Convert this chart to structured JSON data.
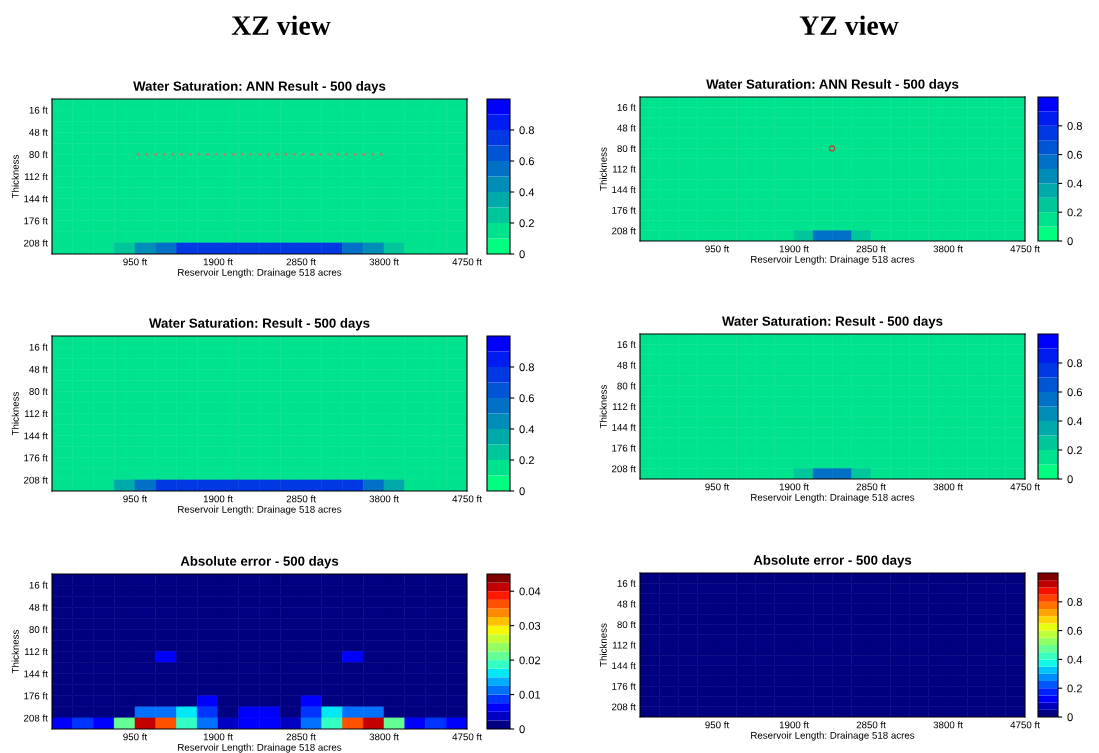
{
  "chart_data": [
    {
      "type": "heatmap",
      "title": "Water Saturation: ANN Result - 500 days",
      "xlabel": "Reservoir Length: Drainage 518 acres",
      "ylabel": "Thickness",
      "annotations": [
        "XZ view"
      ],
      "xlim": [
        0,
        4750
      ],
      "ylim": [
        224,
        0
      ],
      "xticks": [
        {
          "value": 950,
          "label": "950 ft"
        },
        {
          "value": 1900,
          "label": "1900 ft"
        },
        {
          "value": 2850,
          "label": "2850 ft"
        },
        {
          "value": 3800,
          "label": "3800 ft"
        },
        {
          "value": 4750,
          "label": "4750 ft"
        }
      ],
      "yticks": [
        {
          "value": 16,
          "label": "16 ft"
        },
        {
          "value": 48,
          "label": "48 ft"
        },
        {
          "value": 80,
          "label": "80 ft"
        },
        {
          "value": 112,
          "label": "112 ft"
        },
        {
          "value": 144,
          "label": "144 ft"
        },
        {
          "value": 176,
          "label": "176 ft"
        },
        {
          "value": 208,
          "label": "208 ft"
        }
      ],
      "clim": [
        0,
        1
      ],
      "cticks": [
        0,
        0.2,
        0.4,
        0.6,
        0.8
      ],
      "series": [
        {
          "type": "scatter",
          "marker": "circle",
          "color": "#a08878",
          "x": [
            985,
            1084,
            1184,
            1283,
            1383,
            1482,
            1581,
            1681,
            1780,
            1880,
            1979,
            2078,
            2178,
            2277,
            2377,
            2476,
            2575,
            2675,
            2774,
            2874,
            2973,
            3072,
            3172,
            3271,
            3371,
            3470,
            3569,
            3669,
            3768
          ],
          "values": [
            80,
            80,
            80,
            80,
            80,
            80,
            80,
            80,
            80,
            80,
            80,
            80,
            80,
            80,
            80,
            80,
            80,
            80,
            80,
            80,
            80,
            80,
            80,
            80,
            80,
            80,
            80,
            80,
            80
          ]
        }
      ],
      "cells": [
        [
          0.15,
          0.15,
          0.15,
          0.15,
          0.15,
          0.15,
          0.15,
          0.15,
          0.15,
          0.15,
          0.15,
          0.15,
          0.15,
          0.15,
          0.15,
          0.15,
          0.15,
          0.15,
          0.15,
          0.15
        ],
        [
          0.15,
          0.15,
          0.15,
          0.15,
          0.15,
          0.15,
          0.15,
          0.15,
          0.15,
          0.15,
          0.15,
          0.15,
          0.15,
          0.15,
          0.15,
          0.15,
          0.15,
          0.15,
          0.15,
          0.15
        ],
        [
          0.15,
          0.15,
          0.15,
          0.15,
          0.15,
          0.15,
          0.15,
          0.15,
          0.15,
          0.15,
          0.15,
          0.15,
          0.15,
          0.15,
          0.15,
          0.15,
          0.15,
          0.15,
          0.15,
          0.15
        ],
        [
          0.15,
          0.15,
          0.15,
          0.15,
          0.15,
          0.15,
          0.15,
          0.15,
          0.15,
          0.15,
          0.15,
          0.15,
          0.15,
          0.15,
          0.15,
          0.15,
          0.15,
          0.15,
          0.15,
          0.15
        ],
        [
          0.15,
          0.15,
          0.15,
          0.15,
          0.15,
          0.15,
          0.15,
          0.15,
          0.15,
          0.15,
          0.15,
          0.15,
          0.15,
          0.15,
          0.15,
          0.15,
          0.15,
          0.15,
          0.15,
          0.15
        ],
        [
          0.15,
          0.15,
          0.15,
          0.15,
          0.15,
          0.15,
          0.15,
          0.15,
          0.15,
          0.15,
          0.15,
          0.15,
          0.15,
          0.15,
          0.15,
          0.15,
          0.15,
          0.15,
          0.15,
          0.15
        ],
        [
          0.15,
          0.15,
          0.15,
          0.15,
          0.15,
          0.15,
          0.15,
          0.15,
          0.15,
          0.15,
          0.15,
          0.15,
          0.15,
          0.15,
          0.15,
          0.15,
          0.15,
          0.15,
          0.15,
          0.15
        ],
        [
          0.15,
          0.15,
          0.15,
          0.15,
          0.15,
          0.15,
          0.15,
          0.15,
          0.15,
          0.15,
          0.15,
          0.15,
          0.15,
          0.15,
          0.15,
          0.15,
          0.15,
          0.15,
          0.15,
          0.15
        ],
        [
          0.15,
          0.15,
          0.15,
          0.15,
          0.15,
          0.15,
          0.15,
          0.15,
          0.15,
          0.15,
          0.15,
          0.15,
          0.15,
          0.15,
          0.15,
          0.15,
          0.15,
          0.15,
          0.15,
          0.15
        ],
        [
          0.15,
          0.15,
          0.15,
          0.15,
          0.15,
          0.15,
          0.15,
          0.15,
          0.15,
          0.15,
          0.15,
          0.15,
          0.15,
          0.15,
          0.15,
          0.15,
          0.15,
          0.15,
          0.15,
          0.15
        ],
        [
          0.15,
          0.15,
          0.15,
          0.15,
          0.15,
          0.15,
          0.15,
          0.15,
          0.15,
          0.15,
          0.15,
          0.15,
          0.15,
          0.15,
          0.15,
          0.15,
          0.15,
          0.15,
          0.15,
          0.15
        ],
        [
          0.15,
          0.15,
          0.15,
          0.15,
          0.15,
          0.15,
          0.15,
          0.15,
          0.15,
          0.15,
          0.15,
          0.15,
          0.15,
          0.15,
          0.15,
          0.15,
          0.15,
          0.15,
          0.15,
          0.15
        ],
        [
          0.15,
          0.15,
          0.15,
          0.15,
          0.15,
          0.15,
          0.15,
          0.15,
          0.15,
          0.15,
          0.15,
          0.15,
          0.15,
          0.15,
          0.15,
          0.15,
          0.15,
          0.15,
          0.15,
          0.15
        ],
        [
          0.15,
          0.15,
          0.15,
          0.25,
          0.4,
          0.55,
          0.75,
          0.75,
          0.75,
          0.75,
          0.75,
          0.75,
          0.75,
          0.75,
          0.55,
          0.4,
          0.25,
          0.15,
          0.15,
          0.15
        ]
      ]
    },
    {
      "type": "heatmap",
      "title": "Water Saturation: ANN Result - 500 days",
      "xlabel": "Reservoir Length: Drainage 518 acres",
      "ylabel": "Thickness",
      "annotations": [
        "YZ view"
      ],
      "xlim": [
        0,
        4750
      ],
      "ylim": [
        224,
        0
      ],
      "xticks": [
        {
          "value": 950,
          "label": "950 ft"
        },
        {
          "value": 1900,
          "label": "1900 ft"
        },
        {
          "value": 2850,
          "label": "2850 ft"
        },
        {
          "value": 3800,
          "label": "3800 ft"
        },
        {
          "value": 4750,
          "label": "4750 ft"
        }
      ],
      "yticks": [
        {
          "value": 16,
          "label": "16 ft"
        },
        {
          "value": 48,
          "label": "48 ft"
        },
        {
          "value": 80,
          "label": "80 ft"
        },
        {
          "value": 112,
          "label": "112 ft"
        },
        {
          "value": 144,
          "label": "144 ft"
        },
        {
          "value": 176,
          "label": "176 ft"
        },
        {
          "value": 208,
          "label": "208 ft"
        }
      ],
      "clim": [
        0,
        1
      ],
      "cticks": [
        0,
        0.2,
        0.4,
        0.6,
        0.8
      ],
      "series": [
        {
          "type": "scatter",
          "marker": "circle",
          "color": "#c0392b",
          "x": [
            2371
          ],
          "values": [
            80
          ]
        }
      ],
      "cells": [
        [
          0.15,
          0.15,
          0.15,
          0.15,
          0.15,
          0.15,
          0.15,
          0.15,
          0.15,
          0.15,
          0.15,
          0.15,
          0.15,
          0.15,
          0.15,
          0.15,
          0.15,
          0.15,
          0.15,
          0.15
        ],
        [
          0.15,
          0.15,
          0.15,
          0.15,
          0.15,
          0.15,
          0.15,
          0.15,
          0.15,
          0.15,
          0.15,
          0.15,
          0.15,
          0.15,
          0.15,
          0.15,
          0.15,
          0.15,
          0.15,
          0.15
        ],
        [
          0.15,
          0.15,
          0.15,
          0.15,
          0.15,
          0.15,
          0.15,
          0.15,
          0.15,
          0.15,
          0.15,
          0.15,
          0.15,
          0.15,
          0.15,
          0.15,
          0.15,
          0.15,
          0.15,
          0.15
        ],
        [
          0.15,
          0.15,
          0.15,
          0.15,
          0.15,
          0.15,
          0.15,
          0.15,
          0.15,
          0.15,
          0.15,
          0.15,
          0.15,
          0.15,
          0.15,
          0.15,
          0.15,
          0.15,
          0.15,
          0.15
        ],
        [
          0.15,
          0.15,
          0.15,
          0.15,
          0.15,
          0.15,
          0.15,
          0.15,
          0.15,
          0.15,
          0.15,
          0.15,
          0.15,
          0.15,
          0.15,
          0.15,
          0.15,
          0.15,
          0.15,
          0.15
        ],
        [
          0.15,
          0.15,
          0.15,
          0.15,
          0.15,
          0.15,
          0.15,
          0.15,
          0.15,
          0.15,
          0.15,
          0.15,
          0.15,
          0.15,
          0.15,
          0.15,
          0.15,
          0.15,
          0.15,
          0.15
        ],
        [
          0.15,
          0.15,
          0.15,
          0.15,
          0.15,
          0.15,
          0.15,
          0.15,
          0.15,
          0.15,
          0.15,
          0.15,
          0.15,
          0.15,
          0.15,
          0.15,
          0.15,
          0.15,
          0.15,
          0.15
        ],
        [
          0.15,
          0.15,
          0.15,
          0.15,
          0.15,
          0.15,
          0.15,
          0.15,
          0.15,
          0.15,
          0.15,
          0.15,
          0.15,
          0.15,
          0.15,
          0.15,
          0.15,
          0.15,
          0.15,
          0.15
        ],
        [
          0.15,
          0.15,
          0.15,
          0.15,
          0.15,
          0.15,
          0.15,
          0.15,
          0.15,
          0.15,
          0.15,
          0.15,
          0.15,
          0.15,
          0.15,
          0.15,
          0.15,
          0.15,
          0.15,
          0.15
        ],
        [
          0.15,
          0.15,
          0.15,
          0.15,
          0.15,
          0.15,
          0.15,
          0.15,
          0.15,
          0.15,
          0.15,
          0.15,
          0.15,
          0.15,
          0.15,
          0.15,
          0.15,
          0.15,
          0.15,
          0.15
        ],
        [
          0.15,
          0.15,
          0.15,
          0.15,
          0.15,
          0.15,
          0.15,
          0.15,
          0.15,
          0.15,
          0.15,
          0.15,
          0.15,
          0.15,
          0.15,
          0.15,
          0.15,
          0.15,
          0.15,
          0.15
        ],
        [
          0.15,
          0.15,
          0.15,
          0.15,
          0.15,
          0.15,
          0.15,
          0.15,
          0.15,
          0.15,
          0.15,
          0.15,
          0.15,
          0.15,
          0.15,
          0.15,
          0.15,
          0.15,
          0.15,
          0.15
        ],
        [
          0.15,
          0.15,
          0.15,
          0.15,
          0.15,
          0.15,
          0.15,
          0.15,
          0.15,
          0.15,
          0.15,
          0.15,
          0.15,
          0.15,
          0.15,
          0.15,
          0.15,
          0.15,
          0.15,
          0.15
        ],
        [
          0.15,
          0.15,
          0.15,
          0.15,
          0.15,
          0.15,
          0.15,
          0.15,
          0.25,
          0.5,
          0.5,
          0.25,
          0.15,
          0.15,
          0.15,
          0.15,
          0.15,
          0.15,
          0.15,
          0.15
        ]
      ]
    },
    {
      "type": "heatmap",
      "title": "Water Saturation: Result - 500 days",
      "xlabel": "Reservoir Length: Drainage 518 acres",
      "ylabel": "Thickness",
      "xlim": [
        0,
        4750
      ],
      "ylim": [
        224,
        0
      ],
      "xticks": [
        {
          "value": 950,
          "label": "950 ft"
        },
        {
          "value": 1900,
          "label": "1900 ft"
        },
        {
          "value": 2850,
          "label": "2850 ft"
        },
        {
          "value": 3800,
          "label": "3800 ft"
        },
        {
          "value": 4750,
          "label": "4750 ft"
        }
      ],
      "yticks": [
        {
          "value": 16,
          "label": "16 ft"
        },
        {
          "value": 48,
          "label": "48 ft"
        },
        {
          "value": 80,
          "label": "80 ft"
        },
        {
          "value": 112,
          "label": "112 ft"
        },
        {
          "value": 144,
          "label": "144 ft"
        },
        {
          "value": 176,
          "label": "176 ft"
        },
        {
          "value": 208,
          "label": "208 ft"
        }
      ],
      "clim": [
        0,
        1
      ],
      "cticks": [
        0,
        0.2,
        0.4,
        0.6,
        0.8
      ],
      "cells": [
        [
          0.15,
          0.15,
          0.15,
          0.15,
          0.15,
          0.15,
          0.15,
          0.15,
          0.15,
          0.15,
          0.15,
          0.15,
          0.15,
          0.15,
          0.15,
          0.15,
          0.15,
          0.15,
          0.15,
          0.15
        ],
        [
          0.15,
          0.15,
          0.15,
          0.15,
          0.15,
          0.15,
          0.15,
          0.15,
          0.15,
          0.15,
          0.15,
          0.15,
          0.15,
          0.15,
          0.15,
          0.15,
          0.15,
          0.15,
          0.15,
          0.15
        ],
        [
          0.15,
          0.15,
          0.15,
          0.15,
          0.15,
          0.15,
          0.15,
          0.15,
          0.15,
          0.15,
          0.15,
          0.15,
          0.15,
          0.15,
          0.15,
          0.15,
          0.15,
          0.15,
          0.15,
          0.15
        ],
        [
          0.15,
          0.15,
          0.15,
          0.15,
          0.15,
          0.15,
          0.15,
          0.15,
          0.15,
          0.15,
          0.15,
          0.15,
          0.15,
          0.15,
          0.15,
          0.15,
          0.15,
          0.15,
          0.15,
          0.15
        ],
        [
          0.15,
          0.15,
          0.15,
          0.15,
          0.15,
          0.15,
          0.15,
          0.15,
          0.15,
          0.15,
          0.15,
          0.15,
          0.15,
          0.15,
          0.15,
          0.15,
          0.15,
          0.15,
          0.15,
          0.15
        ],
        [
          0.15,
          0.15,
          0.15,
          0.15,
          0.15,
          0.15,
          0.15,
          0.15,
          0.15,
          0.15,
          0.15,
          0.15,
          0.15,
          0.15,
          0.15,
          0.15,
          0.15,
          0.15,
          0.15,
          0.15
        ],
        [
          0.15,
          0.15,
          0.15,
          0.15,
          0.15,
          0.15,
          0.15,
          0.15,
          0.15,
          0.15,
          0.15,
          0.15,
          0.15,
          0.15,
          0.15,
          0.15,
          0.15,
          0.15,
          0.15,
          0.15
        ],
        [
          0.15,
          0.15,
          0.15,
          0.15,
          0.15,
          0.15,
          0.15,
          0.15,
          0.15,
          0.15,
          0.15,
          0.15,
          0.15,
          0.15,
          0.15,
          0.15,
          0.15,
          0.15,
          0.15,
          0.15
        ],
        [
          0.15,
          0.15,
          0.15,
          0.15,
          0.15,
          0.15,
          0.15,
          0.15,
          0.15,
          0.15,
          0.15,
          0.15,
          0.15,
          0.15,
          0.15,
          0.15,
          0.15,
          0.15,
          0.15,
          0.15
        ],
        [
          0.15,
          0.15,
          0.15,
          0.15,
          0.15,
          0.15,
          0.15,
          0.15,
          0.15,
          0.15,
          0.15,
          0.15,
          0.15,
          0.15,
          0.15,
          0.15,
          0.15,
          0.15,
          0.15,
          0.15
        ],
        [
          0.15,
          0.15,
          0.15,
          0.15,
          0.15,
          0.15,
          0.15,
          0.15,
          0.15,
          0.15,
          0.15,
          0.15,
          0.15,
          0.15,
          0.15,
          0.15,
          0.15,
          0.15,
          0.15,
          0.15
        ],
        [
          0.15,
          0.15,
          0.15,
          0.15,
          0.15,
          0.15,
          0.15,
          0.15,
          0.15,
          0.15,
          0.15,
          0.15,
          0.15,
          0.15,
          0.15,
          0.15,
          0.15,
          0.15,
          0.15,
          0.15
        ],
        [
          0.15,
          0.15,
          0.15,
          0.15,
          0.15,
          0.15,
          0.15,
          0.15,
          0.15,
          0.15,
          0.15,
          0.15,
          0.15,
          0.15,
          0.15,
          0.15,
          0.15,
          0.15,
          0.15,
          0.15
        ],
        [
          0.15,
          0.15,
          0.15,
          0.3,
          0.5,
          0.7,
          0.7,
          0.7,
          0.7,
          0.7,
          0.7,
          0.7,
          0.7,
          0.7,
          0.7,
          0.5,
          0.3,
          0.15,
          0.15,
          0.15
        ]
      ]
    },
    {
      "type": "heatmap",
      "title": "Water Saturation: Result - 500 days",
      "xlabel": "Reservoir Length: Drainage 518 acres",
      "ylabel": "Thickness",
      "xlim": [
        0,
        4750
      ],
      "ylim": [
        224,
        0
      ],
      "xticks": [
        {
          "value": 950,
          "label": "950 ft"
        },
        {
          "value": 1900,
          "label": "1900 ft"
        },
        {
          "value": 2850,
          "label": "2850 ft"
        },
        {
          "value": 3800,
          "label": "3800 ft"
        },
        {
          "value": 4750,
          "label": "4750 ft"
        }
      ],
      "yticks": [
        {
          "value": 16,
          "label": "16 ft"
        },
        {
          "value": 48,
          "label": "48 ft"
        },
        {
          "value": 80,
          "label": "80 ft"
        },
        {
          "value": 112,
          "label": "112 ft"
        },
        {
          "value": 144,
          "label": "144 ft"
        },
        {
          "value": 176,
          "label": "176 ft"
        },
        {
          "value": 208,
          "label": "208 ft"
        }
      ],
      "clim": [
        0,
        1
      ],
      "cticks": [
        0,
        0.2,
        0.4,
        0.6,
        0.8
      ],
      "cells": [
        [
          0.15,
          0.15,
          0.15,
          0.15,
          0.15,
          0.15,
          0.15,
          0.15,
          0.15,
          0.15,
          0.15,
          0.15,
          0.15,
          0.15,
          0.15,
          0.15,
          0.15,
          0.15,
          0.15,
          0.15
        ],
        [
          0.15,
          0.15,
          0.15,
          0.15,
          0.15,
          0.15,
          0.15,
          0.15,
          0.15,
          0.15,
          0.15,
          0.15,
          0.15,
          0.15,
          0.15,
          0.15,
          0.15,
          0.15,
          0.15,
          0.15
        ],
        [
          0.15,
          0.15,
          0.15,
          0.15,
          0.15,
          0.15,
          0.15,
          0.15,
          0.15,
          0.15,
          0.15,
          0.15,
          0.15,
          0.15,
          0.15,
          0.15,
          0.15,
          0.15,
          0.15,
          0.15
        ],
        [
          0.15,
          0.15,
          0.15,
          0.15,
          0.15,
          0.15,
          0.15,
          0.15,
          0.15,
          0.15,
          0.15,
          0.15,
          0.15,
          0.15,
          0.15,
          0.15,
          0.15,
          0.15,
          0.15,
          0.15
        ],
        [
          0.15,
          0.15,
          0.15,
          0.15,
          0.15,
          0.15,
          0.15,
          0.15,
          0.15,
          0.15,
          0.15,
          0.15,
          0.15,
          0.15,
          0.15,
          0.15,
          0.15,
          0.15,
          0.15,
          0.15
        ],
        [
          0.15,
          0.15,
          0.15,
          0.15,
          0.15,
          0.15,
          0.15,
          0.15,
          0.15,
          0.15,
          0.15,
          0.15,
          0.15,
          0.15,
          0.15,
          0.15,
          0.15,
          0.15,
          0.15,
          0.15
        ],
        [
          0.15,
          0.15,
          0.15,
          0.15,
          0.15,
          0.15,
          0.15,
          0.15,
          0.15,
          0.15,
          0.15,
          0.15,
          0.15,
          0.15,
          0.15,
          0.15,
          0.15,
          0.15,
          0.15,
          0.15
        ],
        [
          0.15,
          0.15,
          0.15,
          0.15,
          0.15,
          0.15,
          0.15,
          0.15,
          0.15,
          0.15,
          0.15,
          0.15,
          0.15,
          0.15,
          0.15,
          0.15,
          0.15,
          0.15,
          0.15,
          0.15
        ],
        [
          0.15,
          0.15,
          0.15,
          0.15,
          0.15,
          0.15,
          0.15,
          0.15,
          0.15,
          0.15,
          0.15,
          0.15,
          0.15,
          0.15,
          0.15,
          0.15,
          0.15,
          0.15,
          0.15,
          0.15
        ],
        [
          0.15,
          0.15,
          0.15,
          0.15,
          0.15,
          0.15,
          0.15,
          0.15,
          0.15,
          0.15,
          0.15,
          0.15,
          0.15,
          0.15,
          0.15,
          0.15,
          0.15,
          0.15,
          0.15,
          0.15
        ],
        [
          0.15,
          0.15,
          0.15,
          0.15,
          0.15,
          0.15,
          0.15,
          0.15,
          0.15,
          0.15,
          0.15,
          0.15,
          0.15,
          0.15,
          0.15,
          0.15,
          0.15,
          0.15,
          0.15,
          0.15
        ],
        [
          0.15,
          0.15,
          0.15,
          0.15,
          0.15,
          0.15,
          0.15,
          0.15,
          0.15,
          0.15,
          0.15,
          0.15,
          0.15,
          0.15,
          0.15,
          0.15,
          0.15,
          0.15,
          0.15,
          0.15
        ],
        [
          0.15,
          0.15,
          0.15,
          0.15,
          0.15,
          0.15,
          0.15,
          0.15,
          0.15,
          0.15,
          0.15,
          0.15,
          0.15,
          0.15,
          0.15,
          0.15,
          0.15,
          0.15,
          0.15,
          0.15
        ],
        [
          0.15,
          0.15,
          0.15,
          0.15,
          0.15,
          0.15,
          0.15,
          0.15,
          0.25,
          0.5,
          0.5,
          0.25,
          0.15,
          0.15,
          0.15,
          0.15,
          0.15,
          0.15,
          0.15,
          0.15
        ]
      ]
    },
    {
      "type": "heatmap",
      "title": "Absolute error - 500 days",
      "xlabel": "Reservoir Length: Drainage 518 acres",
      "ylabel": "Thickness",
      "xlim": [
        0,
        4750
      ],
      "ylim": [
        224,
        0
      ],
      "xticks": [
        {
          "value": 950,
          "label": "950 ft"
        },
        {
          "value": 1900,
          "label": "1900 ft"
        },
        {
          "value": 2850,
          "label": "2850 ft"
        },
        {
          "value": 3800,
          "label": "3800 ft"
        },
        {
          "value": 4750,
          "label": "4750 ft"
        }
      ],
      "yticks": [
        {
          "value": 16,
          "label": "16 ft"
        },
        {
          "value": 48,
          "label": "48 ft"
        },
        {
          "value": 80,
          "label": "80 ft"
        },
        {
          "value": 112,
          "label": "112 ft"
        },
        {
          "value": 144,
          "label": "144 ft"
        },
        {
          "value": 176,
          "label": "176 ft"
        },
        {
          "value": 208,
          "label": "208 ft"
        }
      ],
      "clim": [
        0,
        0.045
      ],
      "cticks": [
        0,
        0.01,
        0.02,
        0.03,
        0.04
      ],
      "cells": [
        [
          0.001,
          0.001,
          0.001,
          0.001,
          0.001,
          0.001,
          0.001,
          0.001,
          0.001,
          0.001,
          0.001,
          0.001,
          0.001,
          0.001,
          0.001,
          0.001,
          0.001,
          0.001,
          0.001,
          0.001
        ],
        [
          0.001,
          0.001,
          0.001,
          0.001,
          0.001,
          0.001,
          0.001,
          0.001,
          0.001,
          0.001,
          0.001,
          0.001,
          0.001,
          0.001,
          0.001,
          0.001,
          0.001,
          0.001,
          0.001,
          0.001
        ],
        [
          0.001,
          0.001,
          0.001,
          0.001,
          0.001,
          0.001,
          0.001,
          0.001,
          0.001,
          0.001,
          0.001,
          0.001,
          0.001,
          0.001,
          0.001,
          0.001,
          0.001,
          0.001,
          0.001,
          0.001
        ],
        [
          0.001,
          0.001,
          0.001,
          0.001,
          0.001,
          0.001,
          0.001,
          0.001,
          0.001,
          0.001,
          0.001,
          0.001,
          0.001,
          0.001,
          0.001,
          0.001,
          0.001,
          0.001,
          0.001,
          0.001
        ],
        [
          0.001,
          0.001,
          0.001,
          0.001,
          0.001,
          0.001,
          0.001,
          0.001,
          0.001,
          0.001,
          0.001,
          0.001,
          0.001,
          0.001,
          0.001,
          0.001,
          0.001,
          0.001,
          0.001,
          0.001
        ],
        [
          0.001,
          0.001,
          0.001,
          0.001,
          0.001,
          0.001,
          0.001,
          0.001,
          0.001,
          0.001,
          0.001,
          0.001,
          0.001,
          0.001,
          0.001,
          0.001,
          0.001,
          0.001,
          0.001,
          0.001
        ],
        [
          0.001,
          0.001,
          0.001,
          0.001,
          0.001,
          0.001,
          0.001,
          0.001,
          0.001,
          0.001,
          0.001,
          0.001,
          0.001,
          0.001,
          0.001,
          0.001,
          0.001,
          0.001,
          0.001,
          0.001
        ],
        [
          0.001,
          0.001,
          0.001,
          0.001,
          0.001,
          0.005,
          0.001,
          0.001,
          0.001,
          0.001,
          0.001,
          0.001,
          0.001,
          0.001,
          0.005,
          0.001,
          0.001,
          0.001,
          0.001,
          0.001
        ],
        [
          0.001,
          0.001,
          0.001,
          0.001,
          0.001,
          0.001,
          0.001,
          0.001,
          0.001,
          0.001,
          0.001,
          0.001,
          0.001,
          0.001,
          0.001,
          0.001,
          0.001,
          0.001,
          0.001,
          0.001
        ],
        [
          0.001,
          0.001,
          0.001,
          0.001,
          0.001,
          0.001,
          0.001,
          0.001,
          0.001,
          0.001,
          0.001,
          0.001,
          0.001,
          0.001,
          0.001,
          0.001,
          0.001,
          0.001,
          0.001,
          0.001
        ],
        [
          0.001,
          0.001,
          0.001,
          0.001,
          0.001,
          0.001,
          0.001,
          0.001,
          0.001,
          0.001,
          0.001,
          0.001,
          0.001,
          0.001,
          0.001,
          0.001,
          0.001,
          0.001,
          0.001,
          0.001
        ],
        [
          0.001,
          0.001,
          0.001,
          0.001,
          0.001,
          0.001,
          0.001,
          0.005,
          0.001,
          0.001,
          0.001,
          0.001,
          0.005,
          0.001,
          0.001,
          0.001,
          0.001,
          0.001,
          0.001,
          0.001
        ],
        [
          0.001,
          0.001,
          0.001,
          0.001,
          0.01,
          0.012,
          0.016,
          0.008,
          0.001,
          0.005,
          0.005,
          0.001,
          0.008,
          0.016,
          0.012,
          0.01,
          0.001,
          0.001,
          0.001,
          0.001
        ],
        [
          0.005,
          0.008,
          0.005,
          0.02,
          0.04,
          0.035,
          0.018,
          0.01,
          0.004,
          0.006,
          0.006,
          0.004,
          0.01,
          0.018,
          0.035,
          0.04,
          0.02,
          0.005,
          0.008,
          0.005
        ]
      ]
    },
    {
      "type": "heatmap",
      "title": "Absolute error - 500 days",
      "xlabel": "Reservoir Length: Drainage 518 acres",
      "ylabel": "Thickness",
      "xlim": [
        0,
        4750
      ],
      "ylim": [
        224,
        0
      ],
      "xticks": [
        {
          "value": 950,
          "label": "950 ft"
        },
        {
          "value": 1900,
          "label": "1900 ft"
        },
        {
          "value": 2850,
          "label": "2850 ft"
        },
        {
          "value": 3800,
          "label": "3800 ft"
        },
        {
          "value": 4750,
          "label": "4750 ft"
        }
      ],
      "yticks": [
        {
          "value": 16,
          "label": "16 ft"
        },
        {
          "value": 48,
          "label": "48 ft"
        },
        {
          "value": 80,
          "label": "80 ft"
        },
        {
          "value": 112,
          "label": "112 ft"
        },
        {
          "value": 144,
          "label": "144 ft"
        },
        {
          "value": 176,
          "label": "176 ft"
        },
        {
          "value": 208,
          "label": "208 ft"
        }
      ],
      "clim": [
        0,
        1
      ],
      "cticks": [
        0,
        0.2,
        0.4,
        0.6,
        0.8
      ],
      "cells": [
        [
          0.01,
          0.01,
          0.01,
          0.01,
          0.01,
          0.01,
          0.01,
          0.01,
          0.01,
          0.01,
          0.01,
          0.01,
          0.01,
          0.01,
          0.01,
          0.01,
          0.01,
          0.01,
          0.01,
          0.01
        ],
        [
          0.01,
          0.01,
          0.01,
          0.01,
          0.01,
          0.01,
          0.01,
          0.01,
          0.01,
          0.01,
          0.01,
          0.01,
          0.01,
          0.01,
          0.01,
          0.01,
          0.01,
          0.01,
          0.01,
          0.01
        ],
        [
          0.01,
          0.01,
          0.01,
          0.01,
          0.01,
          0.01,
          0.01,
          0.01,
          0.01,
          0.01,
          0.01,
          0.01,
          0.01,
          0.01,
          0.01,
          0.01,
          0.01,
          0.01,
          0.01,
          0.01
        ],
        [
          0.01,
          0.01,
          0.01,
          0.01,
          0.01,
          0.01,
          0.01,
          0.01,
          0.01,
          0.01,
          0.01,
          0.01,
          0.01,
          0.01,
          0.01,
          0.01,
          0.01,
          0.01,
          0.01,
          0.01
        ],
        [
          0.01,
          0.01,
          0.01,
          0.01,
          0.01,
          0.01,
          0.01,
          0.01,
          0.01,
          0.01,
          0.01,
          0.01,
          0.01,
          0.01,
          0.01,
          0.01,
          0.01,
          0.01,
          0.01,
          0.01
        ],
        [
          0.01,
          0.01,
          0.01,
          0.01,
          0.01,
          0.01,
          0.01,
          0.01,
          0.01,
          0.01,
          0.01,
          0.01,
          0.01,
          0.01,
          0.01,
          0.01,
          0.01,
          0.01,
          0.01,
          0.01
        ],
        [
          0.01,
          0.01,
          0.01,
          0.01,
          0.01,
          0.01,
          0.01,
          0.01,
          0.01,
          0.01,
          0.01,
          0.01,
          0.01,
          0.01,
          0.01,
          0.01,
          0.01,
          0.01,
          0.01,
          0.01
        ],
        [
          0.01,
          0.01,
          0.01,
          0.01,
          0.01,
          0.01,
          0.01,
          0.01,
          0.01,
          0.01,
          0.01,
          0.01,
          0.01,
          0.01,
          0.01,
          0.01,
          0.01,
          0.01,
          0.01,
          0.01
        ],
        [
          0.01,
          0.01,
          0.01,
          0.01,
          0.01,
          0.01,
          0.01,
          0.01,
          0.01,
          0.01,
          0.01,
          0.01,
          0.01,
          0.01,
          0.01,
          0.01,
          0.01,
          0.01,
          0.01,
          0.01
        ],
        [
          0.01,
          0.01,
          0.01,
          0.01,
          0.01,
          0.01,
          0.01,
          0.01,
          0.01,
          0.01,
          0.01,
          0.01,
          0.01,
          0.01,
          0.01,
          0.01,
          0.01,
          0.01,
          0.01,
          0.01
        ],
        [
          0.01,
          0.01,
          0.01,
          0.01,
          0.01,
          0.01,
          0.01,
          0.01,
          0.01,
          0.01,
          0.01,
          0.01,
          0.01,
          0.01,
          0.01,
          0.01,
          0.01,
          0.01,
          0.01,
          0.01
        ],
        [
          0.01,
          0.01,
          0.01,
          0.01,
          0.01,
          0.01,
          0.01,
          0.01,
          0.01,
          0.01,
          0.01,
          0.01,
          0.01,
          0.01,
          0.01,
          0.01,
          0.01,
          0.01,
          0.01,
          0.01
        ],
        [
          0.01,
          0.01,
          0.01,
          0.01,
          0.01,
          0.01,
          0.01,
          0.01,
          0.01,
          0.01,
          0.01,
          0.01,
          0.01,
          0.01,
          0.01,
          0.01,
          0.01,
          0.01,
          0.01,
          0.01
        ],
        [
          0.01,
          0.01,
          0.01,
          0.01,
          0.01,
          0.01,
          0.01,
          0.01,
          0.01,
          0.01,
          0.01,
          0.01,
          0.01,
          0.01,
          0.01,
          0.01,
          0.01,
          0.01,
          0.01,
          0.01
        ]
      ]
    }
  ]
}
